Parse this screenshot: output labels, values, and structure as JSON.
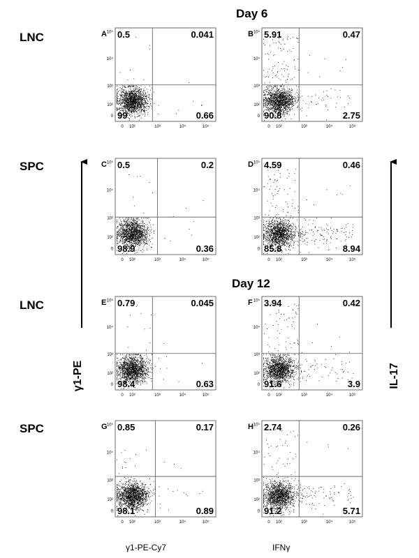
{
  "chart_data": {
    "type": "scatter",
    "day_titles": [
      "Day 6",
      "Day 12"
    ],
    "row_labels": [
      "LNC",
      "SPC",
      "LNC",
      "SPC"
    ],
    "x_titles": [
      "γ1-PE-Cy7",
      "IFNγ"
    ],
    "y_titles": [
      "γ1-PE",
      "IL-17"
    ],
    "x_ticks": [
      "0",
      "10²",
      "10³",
      "10⁴",
      "10⁵"
    ],
    "y_ticks": [
      "10⁵",
      "10⁴",
      "10³",
      "10²",
      "0"
    ],
    "panels": [
      {
        "letter": "A",
        "day": "Day 6",
        "row": "LNC",
        "x": "γ1-PE-Cy7",
        "ul": "0.5",
        "ur": "0.041",
        "ll": "99",
        "lr": "0.66",
        "ul_n": 0.5,
        "ur_n": 0.041,
        "ll_n": 99,
        "lr_n": 0.66
      },
      {
        "letter": "B",
        "day": "Day 6",
        "row": "LNC",
        "x": "IFNγ",
        "ul": "5.91",
        "ur": "0.47",
        "ll": "90.8",
        "lr": "2.75",
        "ul_n": 5.91,
        "ur_n": 0.47,
        "ll_n": 90.8,
        "lr_n": 2.75
      },
      {
        "letter": "C",
        "day": "Day 6",
        "row": "SPC",
        "x": "γ1-PE-Cy7",
        "ul": "0.5",
        "ur": "0.2",
        "ll": "98.9",
        "lr": "0.36",
        "ul_n": 0.5,
        "ur_n": 0.2,
        "ll_n": 98.9,
        "lr_n": 0.36
      },
      {
        "letter": "D",
        "day": "Day 6",
        "row": "SPC",
        "x": "IFNγ",
        "ul": "4.59",
        "ur": "0.46",
        "ll": "85.8",
        "lr": "8.94",
        "ul_n": 4.59,
        "ur_n": 0.46,
        "ll_n": 85.8,
        "lr_n": 8.94
      },
      {
        "letter": "E",
        "day": "Day 12",
        "row": "LNC",
        "x": "γ1-PE-Cy7",
        "ul": "0.79",
        "ur": "0.045",
        "ll": "98.4",
        "lr": "0.63",
        "ul_n": 0.79,
        "ur_n": 0.045,
        "ll_n": 98.4,
        "lr_n": 0.63
      },
      {
        "letter": "F",
        "day": "Day 12",
        "row": "LNC",
        "x": "IFNγ",
        "ul": "3.94",
        "ur": "0.42",
        "ll": "91.6",
        "lr": "3.9",
        "ul_n": 3.94,
        "ur_n": 0.42,
        "ll_n": 91.6,
        "lr_n": 3.9
      },
      {
        "letter": "G",
        "day": "Day 12",
        "row": "SPC",
        "x": "γ1-PE-Cy7",
        "ul": "0.85",
        "ur": "0.17",
        "ll": "98.1",
        "lr": "0.89",
        "ul_n": 0.85,
        "ur_n": 0.17,
        "ll_n": 98.1,
        "lr_n": 0.89
      },
      {
        "letter": "H",
        "day": "Day 12",
        "row": "SPC",
        "x": "IFNγ",
        "ul": "2.74",
        "ur": "0.26",
        "ll": "91.2",
        "lr": "5.71",
        "ul_n": 2.74,
        "ur_n": 0.26,
        "ll_n": 91.2,
        "lr_n": 5.71
      }
    ],
    "point_color": "#000000",
    "gate_color": "#555555"
  }
}
